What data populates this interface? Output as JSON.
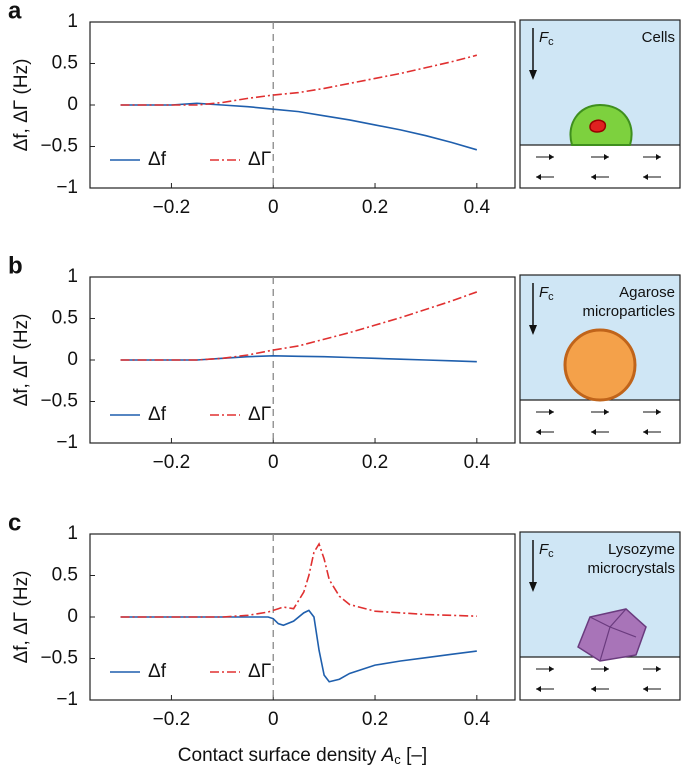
{
  "chart_data": [
    {
      "type": "line",
      "panel": "a",
      "ylabel": "Δf, ΔΓ (Hz)",
      "inset_label": [
        "Cells"
      ],
      "force_label": "F",
      "force_subscript": "c",
      "x": [
        -0.3,
        -0.2,
        -0.15,
        -0.1,
        -0.05,
        0,
        0.05,
        0.1,
        0.15,
        0.2,
        0.25,
        0.3,
        0.35,
        0.4
      ],
      "series": [
        {
          "name": "Δf",
          "color": "#1f5fad",
          "dash": "solid",
          "values": [
            0,
            0,
            0.02,
            0,
            -0.02,
            -0.05,
            -0.08,
            -0.13,
            -0.18,
            -0.24,
            -0.3,
            -0.37,
            -0.45,
            -0.54
          ]
        },
        {
          "name": "ΔΓ",
          "color": "#e03030",
          "dash": "dashdot",
          "values": [
            0,
            0,
            0,
            0.03,
            0.08,
            0.12,
            0.15,
            0.2,
            0.26,
            0.32,
            0.38,
            0.45,
            0.52,
            0.6
          ]
        }
      ],
      "xlim": [
        -0.36,
        0.475
      ],
      "ylim": [
        -1,
        1
      ],
      "vline": 0,
      "xticks": [
        {
          "value": -0.2,
          "label": "−0.2"
        },
        0,
        0.2,
        0.4
      ],
      "yticks": [
        {
          "value": -1,
          "label": "−1"
        },
        {
          "value": -0.5,
          "label": "−0.5"
        },
        0,
        0.5,
        1
      ]
    },
    {
      "type": "line",
      "panel": "b",
      "ylabel": "Δf, ΔΓ (Hz)",
      "inset_label": [
        "Agarose",
        "microparticles"
      ],
      "force_label": "F",
      "force_subscript": "c",
      "x": [
        -0.3,
        -0.2,
        -0.15,
        -0.1,
        -0.05,
        0,
        0.05,
        0.1,
        0.15,
        0.2,
        0.25,
        0.3,
        0.35,
        0.4
      ],
      "series": [
        {
          "name": "Δf",
          "color": "#1f5fad",
          "dash": "solid",
          "values": [
            0,
            0,
            0,
            0.02,
            0.04,
            0.05,
            0.045,
            0.04,
            0.03,
            0.02,
            0.01,
            0,
            -0.01,
            -0.02
          ]
        },
        {
          "name": "ΔΓ",
          "color": "#e03030",
          "dash": "dashdot",
          "values": [
            0,
            0,
            0,
            0.02,
            0.06,
            0.12,
            0.17,
            0.25,
            0.33,
            0.42,
            0.51,
            0.61,
            0.71,
            0.82
          ]
        }
      ],
      "xlim": [
        -0.36,
        0.475
      ],
      "ylim": [
        -1,
        1
      ],
      "vline": 0,
      "xticks": [
        {
          "value": -0.2,
          "label": "−0.2"
        },
        0,
        0.2,
        0.4
      ],
      "yticks": [
        {
          "value": -1,
          "label": "−1"
        },
        {
          "value": -0.5,
          "label": "−0.5"
        },
        0,
        0.5,
        1
      ]
    },
    {
      "type": "line",
      "panel": "c",
      "ylabel": "Δf, ΔΓ (Hz)",
      "inset_label": [
        "Lysozyme",
        "microcrystals"
      ],
      "force_label": "F",
      "force_subscript": "c",
      "xlabel": "Contact surface density ",
      "xlabel_var": "A",
      "xlabel_subscript": "c",
      "xlabel_suffix": " [–]",
      "x": [
        -0.3,
        -0.1,
        -0.05,
        -0.01,
        0,
        0.01,
        0.02,
        0.04,
        0.06,
        0.07,
        0.08,
        0.09,
        0.1,
        0.11,
        0.13,
        0.15,
        0.2,
        0.25,
        0.3,
        0.35,
        0.4
      ],
      "series": [
        {
          "name": "Δf",
          "color": "#1f5fad",
          "dash": "solid",
          "values": [
            0,
            0,
            0,
            0,
            -0.02,
            -0.08,
            -0.1,
            -0.05,
            0.05,
            0.08,
            0,
            -0.4,
            -0.7,
            -0.78,
            -0.75,
            -0.68,
            -0.58,
            -0.53,
            -0.49,
            -0.45,
            -0.41
          ]
        },
        {
          "name": "ΔΓ",
          "color": "#e03030",
          "dash": "dashdot",
          "values": [
            0,
            0,
            0.02,
            0.06,
            0.08,
            0.1,
            0.12,
            0.1,
            0.3,
            0.5,
            0.78,
            0.88,
            0.7,
            0.45,
            0.25,
            0.15,
            0.07,
            0.05,
            0.03,
            0.02,
            0.01
          ]
        }
      ],
      "xlim": [
        -0.36,
        0.475
      ],
      "ylim": [
        -1,
        1
      ],
      "vline": 0,
      "xticks": [
        {
          "value": -0.2,
          "label": "−0.2"
        },
        0,
        0.2,
        0.4
      ],
      "yticks": [
        {
          "value": -1,
          "label": "−1"
        },
        {
          "value": -0.5,
          "label": "−0.5"
        },
        0,
        0.5,
        1
      ]
    }
  ]
}
